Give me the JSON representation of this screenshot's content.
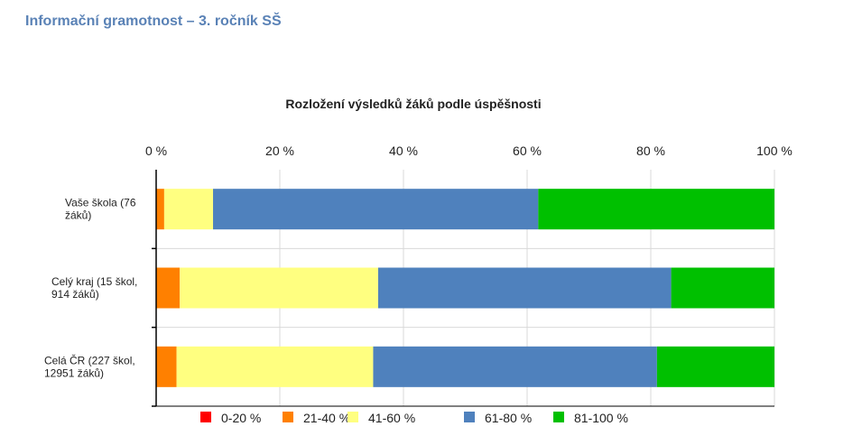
{
  "page": {
    "title": "Informační gramotnost – 3. ročník SŠ"
  },
  "chart_data": {
    "type": "bar",
    "orientation": "horizontal",
    "stacked": true,
    "title": "Rozložení výsledků žáků podle úspěšnosti",
    "xlabel": "",
    "ylabel": "",
    "xlim": [
      0,
      100
    ],
    "x_ticks": [
      "0 %",
      "20 %",
      "40 %",
      "60 %",
      "80 %",
      "100 %"
    ],
    "grid": true,
    "legend_position": "bottom",
    "categories": [
      [
        "Vaše škola (76",
        "žáků)"
      ],
      [
        "Celý kraj (15 škol,",
        "914 žáků)"
      ],
      [
        "Celá ČR (227 škol,",
        "12951 žáků)"
      ]
    ],
    "series": [
      {
        "name": "0-20 %",
        "color": "#ff0000",
        "values": [
          0,
          0,
          0
        ]
      },
      {
        "name": "21-40 %",
        "color": "#ff8000",
        "values": [
          1.3,
          3.8,
          3.3
        ]
      },
      {
        "name": "41-60 %",
        "color": "#ffff80",
        "values": [
          7.9,
          32.1,
          31.8
        ]
      },
      {
        "name": "61-80 %",
        "color": "#4f81bd",
        "values": [
          52.6,
          47.4,
          45.9
        ]
      },
      {
        "name": "81-100 %",
        "color": "#00c000",
        "values": [
          38.2,
          16.7,
          19.0
        ]
      }
    ]
  }
}
